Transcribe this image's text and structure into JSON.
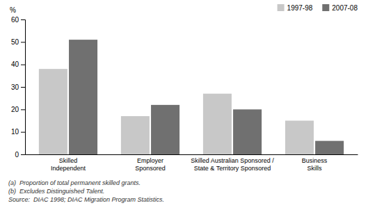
{
  "chart_data": {
    "type": "bar",
    "categories": [
      "Skilled\nIndependent",
      "Employer\nSponsored",
      "Skilled Australian Sponsored /\nState & Territory Sponsored",
      "Business\nSkills"
    ],
    "series": [
      {
        "name": "1997-98",
        "color": "#c8c8c8",
        "values": [
          38,
          17,
          27,
          15
        ]
      },
      {
        "name": "2007-08",
        "color": "#707070",
        "values": [
          51,
          22,
          20,
          6
        ]
      }
    ],
    "y_label": "%",
    "ylim": [
      0,
      60
    ],
    "yticks": [
      0,
      10,
      20,
      30,
      40,
      50,
      60
    ],
    "grid": false,
    "legend": "upper right",
    "annotations": [
      "(a)  Proportion of total permanent skilled grants.",
      "(b)  Excludes Distinguished Talent.",
      "Source:  DIAC 1998; DIAC Migration Program Statistics."
    ]
  }
}
